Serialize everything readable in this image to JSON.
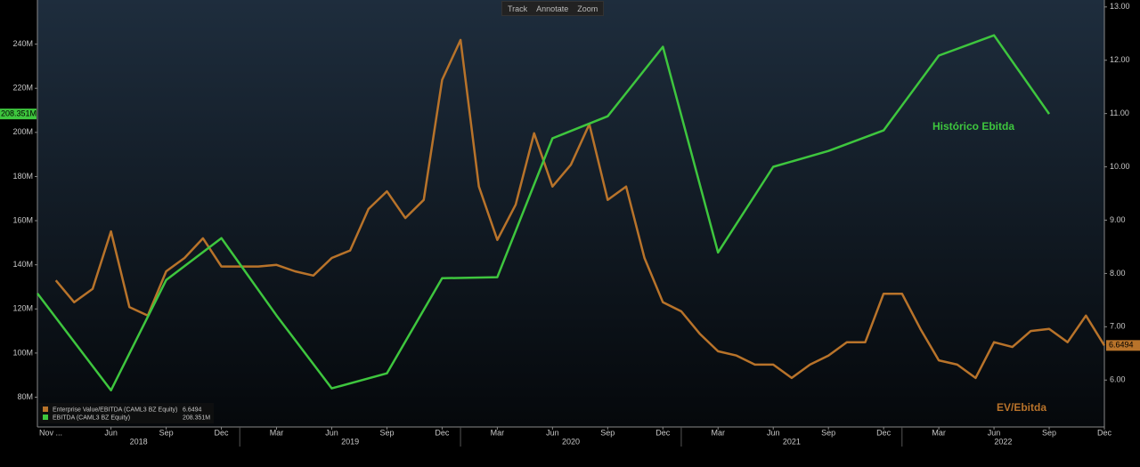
{
  "toolbar": [
    "Track",
    "Annotate",
    "Zoom"
  ],
  "chart_data": {
    "type": "line",
    "annotations": [
      "Histórico Ebitda",
      "EV/Ebitda"
    ],
    "xlim": [
      "2018-02",
      "2022-12"
    ],
    "x_start_label": "Nov ...",
    "xticks": [
      {
        "value": "2018-06",
        "label": "Jun"
      },
      {
        "value": "2018-09",
        "label": "Sep"
      },
      {
        "value": "2018-12",
        "label": "Dec"
      },
      {
        "value": "2019-03",
        "label": "Mar"
      },
      {
        "value": "2019-06",
        "label": "Jun"
      },
      {
        "value": "2019-09",
        "label": "Sep"
      },
      {
        "value": "2019-12",
        "label": "Dec"
      },
      {
        "value": "2020-03",
        "label": "Mar"
      },
      {
        "value": "2020-06",
        "label": "Jun"
      },
      {
        "value": "2020-09",
        "label": "Sep"
      },
      {
        "value": "2020-12",
        "label": "Dec"
      },
      {
        "value": "2021-03",
        "label": "Mar"
      },
      {
        "value": "2021-06",
        "label": "Jun"
      },
      {
        "value": "2021-09",
        "label": "Sep"
      },
      {
        "value": "2021-12",
        "label": "Dec"
      },
      {
        "value": "2022-03",
        "label": "Mar"
      },
      {
        "value": "2022-06",
        "label": "Jun"
      },
      {
        "value": "2022-09",
        "label": "Sep"
      },
      {
        "value": "2022-12",
        "label": "Dec"
      }
    ],
    "years": [
      2018,
      2019,
      2020,
      2021,
      2022
    ],
    "ylim": [
      66.5,
      260
    ],
    "yticks": [
      {
        "value": 80,
        "label": "80M"
      },
      {
        "value": 100,
        "label": "100M"
      },
      {
        "value": 120,
        "label": "120M"
      },
      {
        "value": 140,
        "label": "140M"
      },
      {
        "value": 160,
        "label": "160M"
      },
      {
        "value": 180,
        "label": "180M"
      },
      {
        "value": 200,
        "label": "200M"
      },
      {
        "value": 220,
        "label": "220M"
      },
      {
        "value": 240,
        "label": "240M"
      }
    ],
    "y2lim": [
      5.12,
      13.13
    ],
    "y2ticks": [
      {
        "value": 6,
        "label": "6.00"
      },
      {
        "value": 7,
        "label": "7.00"
      },
      {
        "value": 8,
        "label": "8.00"
      },
      {
        "value": 9,
        "label": "9.00"
      },
      {
        "value": 10,
        "label": "10.00"
      },
      {
        "value": 11,
        "label": "11.00"
      },
      {
        "value": 12,
        "label": "12.00"
      },
      {
        "value": 13,
        "label": "13.00"
      }
    ],
    "series": [
      {
        "name": "Enterprise Value/EBITDA (CAML3 BZ Equity)",
        "color": "#b8732a",
        "axis": "y2",
        "x": [
          "2018-03",
          "2018-04",
          "2018-05",
          "2018-06",
          "2018-07",
          "2018-08",
          "2018-09",
          "2018-10",
          "2018-11",
          "2018-12",
          "2019-01",
          "2019-02",
          "2019-03",
          "2019-04",
          "2019-05",
          "2019-06",
          "2019-07",
          "2019-08",
          "2019-09",
          "2019-10",
          "2019-11",
          "2019-12",
          "2020-01",
          "2020-02",
          "2020-03",
          "2020-04",
          "2020-05",
          "2020-06",
          "2020-07",
          "2020-08",
          "2020-09",
          "2020-10",
          "2020-11",
          "2020-12",
          "2021-01",
          "2021-02",
          "2021-03",
          "2021-04",
          "2021-05",
          "2021-06",
          "2021-07",
          "2021-08",
          "2021-09",
          "2021-10",
          "2021-11",
          "2021-12",
          "2022-01",
          "2022-02",
          "2022-03",
          "2022-04",
          "2022-05",
          "2022-06",
          "2022-07",
          "2022-08",
          "2022-09",
          "2022-10",
          "2022-11",
          "2022-12"
        ],
        "values": [
          7.87,
          7.46,
          7.71,
          8.79,
          7.37,
          7.21,
          8.04,
          8.29,
          8.66,
          8.13,
          8.13,
          8.13,
          8.16,
          8.04,
          7.96,
          8.29,
          8.43,
          9.21,
          9.54,
          9.04,
          9.38,
          11.63,
          12.38,
          9.63,
          8.63,
          9.29,
          10.63,
          9.63,
          10.04,
          10.8,
          9.38,
          9.63,
          8.29,
          7.46,
          7.29,
          6.87,
          6.54,
          6.46,
          6.29,
          6.29,
          6.04,
          6.29,
          6.46,
          6.71,
          6.71,
          7.62,
          7.62,
          6.96,
          6.37,
          6.29,
          6.04,
          6.71,
          6.62,
          6.92,
          6.96,
          6.71,
          7.21,
          6.6494
        ]
      },
      {
        "name": "EBITDA (CAML3 BZ Equity)",
        "color": "#3ec63e",
        "x": [
          "2018-02",
          "2018-06",
          "2018-09",
          "2018-12",
          "2019-03",
          "2019-06",
          "2019-09",
          "2019-12",
          "2020-03",
          "2020-06",
          "2020-09",
          "2020-12",
          "2021-03",
          "2021-06",
          "2021-09",
          "2021-12",
          "2022-03",
          "2022-06",
          "2022-09"
        ],
        "values": [
          127,
          83.1,
          133.1,
          152.1,
          117,
          84,
          90.8,
          133.9,
          134.4,
          197.3,
          207.3,
          238.8,
          145.6,
          184.4,
          191.6,
          200.9,
          234.8,
          244,
          208.351
        ],
        "value_labels": [
          null,
          null,
          null,
          null,
          null,
          null,
          null,
          null,
          null,
          null,
          null,
          null,
          null,
          null,
          null,
          null,
          null,
          null,
          "208.351M"
        ]
      }
    ]
  }
}
